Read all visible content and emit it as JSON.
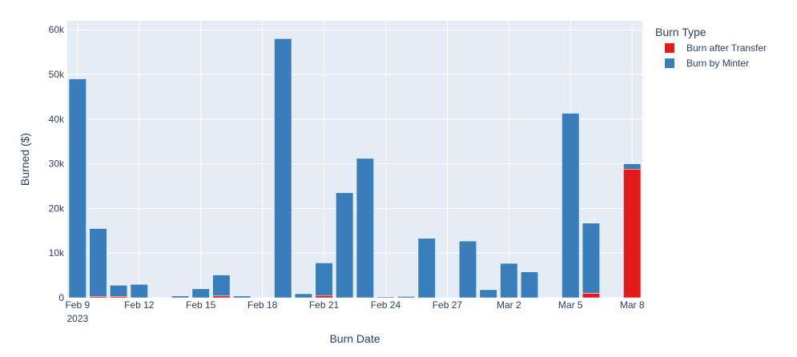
{
  "chart_data": {
    "type": "bar",
    "stacked": true,
    "xlabel": "Burn Date",
    "ylabel": "Burned ($)",
    "ylim": [
      0,
      62000
    ],
    "y_ticks": [
      "0",
      "10k",
      "20k",
      "30k",
      "40k",
      "50k",
      "60k"
    ],
    "x_ticks": [
      {
        "date": "2023-02-09",
        "label": "Feb 9",
        "sublabel": "2023"
      },
      {
        "date": "2023-02-12",
        "label": "Feb 12"
      },
      {
        "date": "2023-02-15",
        "label": "Feb 15"
      },
      {
        "date": "2023-02-18",
        "label": "Feb 18"
      },
      {
        "date": "2023-02-21",
        "label": "Feb 21"
      },
      {
        "date": "2023-02-24",
        "label": "Feb 24"
      },
      {
        "date": "2023-02-27",
        "label": "Feb 27"
      },
      {
        "date": "2023-03-02",
        "label": "Mar 2"
      },
      {
        "date": "2023-03-05",
        "label": "Mar 5"
      },
      {
        "date": "2023-03-08",
        "label": "Mar 8"
      }
    ],
    "x_range": [
      "2023-02-08T12:00",
      "2023-03-08T12:00"
    ],
    "grid": true,
    "legend_title": "Burn Type",
    "legend_position": "top-right, outside plot",
    "colors": {
      "Burn after Transfer": "#e31a1c",
      "Burn by Minter": "#3a7dbb",
      "Burn by Minter (light)": "#9dbfe0",
      "plot_background": "#e5ecf6",
      "grid": "#ffffff",
      "text": "#2a3f5f"
    },
    "series": [
      {
        "name": "Burn after Transfer",
        "color": "#e31a1c",
        "points": [
          {
            "date": "2023-02-10",
            "value": 300
          },
          {
            "date": "2023-02-11",
            "value": 300
          },
          {
            "date": "2023-02-16",
            "value": 400
          },
          {
            "date": "2023-02-21",
            "value": 500
          },
          {
            "date": "2023-03-06",
            "value": 1000
          },
          {
            "date": "2023-03-08",
            "value": 28800
          }
        ]
      },
      {
        "name": "Burn by Minter",
        "color": "#3a7dbb",
        "points": [
          {
            "date": "2023-02-09",
            "value": 49000
          },
          {
            "date": "2023-02-10",
            "value": 15200
          },
          {
            "date": "2023-02-11",
            "value": 2500
          },
          {
            "date": "2023-02-12",
            "value": 3000
          },
          {
            "date": "2023-02-14",
            "value": 400
          },
          {
            "date": "2023-02-15",
            "value": 2000
          },
          {
            "date": "2023-02-16",
            "value": 4700
          },
          {
            "date": "2023-02-17",
            "value": 400
          },
          {
            "date": "2023-02-19",
            "value": 58000
          },
          {
            "date": "2023-02-20",
            "value": 900
          },
          {
            "date": "2023-02-21",
            "value": 7300
          },
          {
            "date": "2023-02-22",
            "value": 23500
          },
          {
            "date": "2023-02-23",
            "value": 31200
          },
          {
            "date": "2023-02-24",
            "value": 200
          },
          {
            "date": "2023-02-25",
            "value": 300
          },
          {
            "date": "2023-02-26",
            "value": 13300
          },
          {
            "date": "2023-02-28",
            "value": 12700
          },
          {
            "date": "2023-03-01",
            "value": 1800
          },
          {
            "date": "2023-03-02",
            "value": 7700
          },
          {
            "date": "2023-03-03",
            "value": 5800
          },
          {
            "date": "2023-03-05",
            "value": 41300
          },
          {
            "date": "2023-03-06",
            "value": 15700
          },
          {
            "date": "2023-03-08",
            "value": 1200
          }
        ]
      }
    ]
  }
}
